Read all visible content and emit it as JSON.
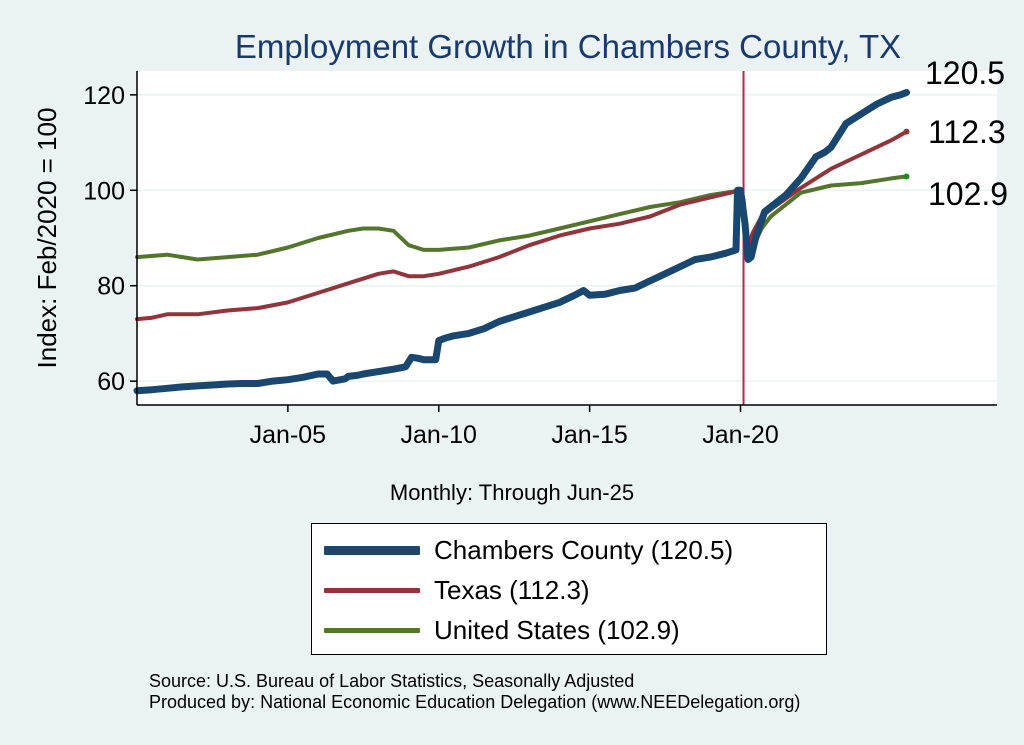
{
  "chart_data": {
    "type": "line",
    "title": "Employment Growth in Chambers  County, TX",
    "ylabel": "Index: Feb/2020 = 100",
    "xlabel": "Monthly: Through Jun-25",
    "ylim": [
      55,
      125
    ],
    "xlim": [
      2000.0,
      2028.5
    ],
    "yticks": [
      60,
      80,
      100,
      120
    ],
    "xticks": [
      {
        "label": "Jan-05",
        "x": 2005.0
      },
      {
        "label": "Jan-10",
        "x": 2010.0
      },
      {
        "label": "Jan-15",
        "x": 2015.0
      },
      {
        "label": "Jan-20",
        "x": 2020.0
      }
    ],
    "reference_line": {
      "x": 2020.1,
      "color": "#b22a4a"
    },
    "series": [
      {
        "name": "Chambers  County",
        "legend": "Chambers  County (120.5)",
        "end_label": "120.5",
        "color": "#1a476f",
        "width": 7,
        "x": [
          2000.0,
          2000.5,
          2001.0,
          2001.5,
          2002.0,
          2002.5,
          2003.0,
          2003.5,
          2004.0,
          2004.5,
          2005.0,
          2005.5,
          2006.0,
          2006.3,
          2006.5,
          2006.9,
          2007.0,
          2007.3,
          2007.5,
          2008.0,
          2008.5,
          2008.9,
          2009.1,
          2009.3,
          2009.5,
          2009.9,
          2010.0,
          2010.2,
          2010.5,
          2011.0,
          2011.5,
          2012.0,
          2012.5,
          2013.0,
          2013.5,
          2014.0,
          2014.5,
          2014.8,
          2015.0,
          2015.5,
          2016.0,
          2016.5,
          2017.0,
          2017.5,
          2018.0,
          2018.5,
          2019.0,
          2019.5,
          2019.85,
          2019.9,
          2020.0,
          2020.15,
          2020.25,
          2020.35,
          2020.5,
          2020.8,
          2021.0,
          2021.5,
          2022.0,
          2022.5,
          2022.8,
          2023.0,
          2023.5,
          2024.0,
          2024.5,
          2025.0,
          2025.3,
          2025.5
        ],
        "values": [
          58.0,
          58.2,
          58.5,
          58.8,
          59.0,
          59.2,
          59.4,
          59.5,
          59.5,
          60.0,
          60.3,
          60.8,
          61.5,
          61.5,
          60.0,
          60.5,
          61.0,
          61.2,
          61.5,
          62.0,
          62.5,
          63.0,
          65.0,
          64.8,
          64.5,
          64.5,
          68.5,
          69.0,
          69.5,
          70.0,
          71.0,
          72.5,
          73.5,
          74.5,
          75.5,
          76.5,
          78.0,
          79.0,
          78.0,
          78.2,
          79.0,
          79.5,
          81.0,
          82.5,
          84.0,
          85.5,
          86.0,
          86.8,
          87.5,
          100.0,
          100.0,
          93.0,
          85.5,
          86.0,
          90.0,
          95.5,
          96.5,
          99.0,
          102.5,
          107.0,
          108.0,
          109.0,
          114.0,
          116.0,
          118.0,
          119.5,
          120.0,
          120.5
        ]
      },
      {
        "name": "Texas",
        "legend": "Texas (112.3)",
        "end_label": "112.3",
        "color": "#90353b",
        "width": 4,
        "x": [
          2000.0,
          2000.5,
          2001.0,
          2002.0,
          2003.0,
          2004.0,
          2005.0,
          2006.0,
          2007.0,
          2008.0,
          2008.5,
          2009.0,
          2009.5,
          2010.0,
          2011.0,
          2012.0,
          2013.0,
          2014.0,
          2015.0,
          2016.0,
          2017.0,
          2018.0,
          2019.0,
          2020.0,
          2020.1,
          2020.25,
          2020.4,
          2020.7,
          2021.0,
          2022.0,
          2023.0,
          2024.0,
          2025.0,
          2025.5
        ],
        "values": [
          73.0,
          73.3,
          74.0,
          74.0,
          74.8,
          75.3,
          76.5,
          78.5,
          80.5,
          82.5,
          83.0,
          82.0,
          82.0,
          82.5,
          84.0,
          86.0,
          88.5,
          90.5,
          92.0,
          93.0,
          94.5,
          97.0,
          98.5,
          100.0,
          98.0,
          88.0,
          91.0,
          94.5,
          96.0,
          100.5,
          104.5,
          107.5,
          110.5,
          112.3
        ]
      },
      {
        "name": "United States",
        "legend": "United States (102.9)",
        "end_label": "102.9",
        "color": "#55752f",
        "width": 4,
        "x": [
          2000.0,
          2001.0,
          2002.0,
          2003.0,
          2004.0,
          2005.0,
          2006.0,
          2007.0,
          2007.5,
          2008.0,
          2008.5,
          2009.0,
          2009.5,
          2010.0,
          2011.0,
          2012.0,
          2013.0,
          2014.0,
          2015.0,
          2016.0,
          2017.0,
          2018.0,
          2019.0,
          2020.0,
          2020.1,
          2020.25,
          2020.4,
          2020.7,
          2021.0,
          2022.0,
          2023.0,
          2024.0,
          2025.0,
          2025.5
        ],
        "values": [
          86.0,
          86.5,
          85.5,
          86.0,
          86.5,
          88.0,
          90.0,
          91.5,
          92.0,
          92.0,
          91.5,
          88.5,
          87.5,
          87.5,
          88.0,
          89.5,
          90.5,
          92.0,
          93.5,
          95.0,
          96.5,
          97.5,
          99.0,
          100.0,
          98.0,
          85.5,
          88.0,
          92.0,
          94.5,
          99.5,
          101.0,
          101.5,
          102.5,
          102.9
        ]
      }
    ]
  },
  "footer": {
    "source": "Source: U.S. Bureau of Labor Statistics, Seasonally Adjusted",
    "produced_by": "Produced by: National Economic Education Delegation (www.NEEDelegation.org)"
  }
}
